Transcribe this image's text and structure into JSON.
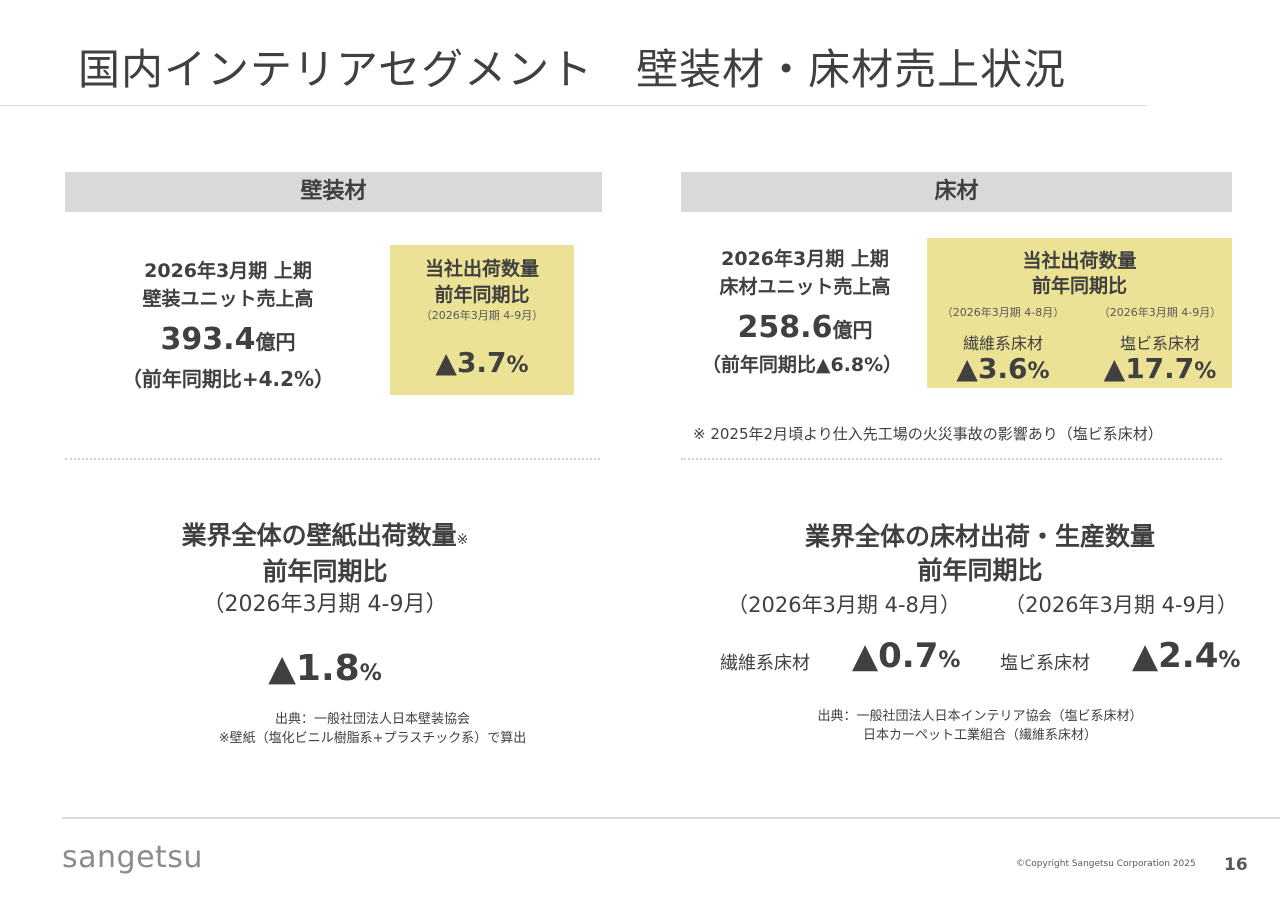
{
  "header": {
    "title": "国内インテリアセグメント　壁装材・床材売上状況"
  },
  "wall": {
    "heading": "壁装材",
    "sales_line1": "2026年3月期 上期",
    "sales_line2": "壁装ユニット売上高",
    "sales_value": "393.4",
    "sales_unit": "億円",
    "sales_yoy": "（前年同期比+4.2%）",
    "box_line1": "当社出荷数量",
    "box_line2": "前年同期比",
    "box_period": "（2026年3月期 4-9月）",
    "box_value": "▲3.7",
    "box_pct": "%"
  },
  "floor": {
    "heading": "床材",
    "sales_line1": "2026年3月期 上期",
    "sales_line2": "床材ユニット売上高",
    "sales_value": "258.6",
    "sales_unit": "億円",
    "sales_yoy": "（前年同期比▲6.8%）",
    "box_line1": "当社出荷数量",
    "box_line2": "前年同期比",
    "period_a": "（2026年3月期 4-8月）",
    "period_b": "（2026年3月期 4-9月）",
    "label_a": "繊維系床材",
    "label_b": "塩ビ系床材",
    "value_a": "▲3.6",
    "value_b": "▲17.7",
    "pct": "%",
    "note": "※ 2025年2月頃より仕入先工場の火災事故の影響あり（塩ビ系床材）"
  },
  "industry_wall": {
    "line1": "業界全体の壁紙出荷数量",
    "mark": "※",
    "line2": "前年同期比",
    "period": "（2026年3月期 4-9月）",
    "value": "▲1.8",
    "pct": "%",
    "source1": "出典：一般社団法人日本壁装協会",
    "source2": "※壁紙（塩化ビニル樹脂系+プラスチック系）で算出"
  },
  "industry_floor": {
    "line1": "業界全体の床材出荷・生産数量",
    "line2": "前年同期比",
    "period_a": "（2026年3月期 4-8月）",
    "period_b": "（2026年3月期 4-9月）",
    "label_a": "繊維系床材",
    "value_a": "▲0.7",
    "label_b": "塩ビ系床材",
    "value_b": "▲2.4",
    "pct": "%",
    "source1": "出典：一般社団法人日本インテリア協会（塩ビ系床材）",
    "source2": "日本カーペット工業組合（繊維系床材）"
  },
  "footer": {
    "logo": "sangetsu",
    "copyright": "©Copyright Sangetsu Corporation 2025",
    "page": "16"
  }
}
